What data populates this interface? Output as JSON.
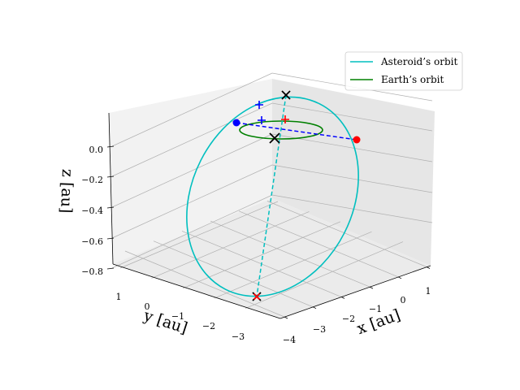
{
  "chart_data": {
    "type": "line",
    "projection": "3d",
    "axes": {
      "x": {
        "label": "x [au]",
        "ticks": [
          "-4",
          "-3",
          "-2",
          "-1",
          "0",
          "1"
        ]
      },
      "y": {
        "label": "y [au]",
        "ticks": [
          "-3",
          "-2",
          "-1",
          "0",
          "1"
        ]
      },
      "z": {
        "label": "z [au]",
        "ticks": [
          "-0.8",
          "-0.6",
          "-0.4",
          "-0.2",
          "0.0"
        ]
      }
    },
    "grid": true,
    "legend": {
      "position": "top-right",
      "entries": [
        {
          "label": "Asteroid’s orbit",
          "color": "#00bfbf"
        },
        {
          "label": "Earth’s orbit",
          "color": "#008000"
        }
      ]
    },
    "series": [
      {
        "name": "Asteroid’s orbit",
        "color": "#00bfbf",
        "shape": "ellipse"
      },
      {
        "name": "Earth’s orbit",
        "color": "#008000",
        "shape": "ellipse"
      }
    ],
    "markers": [
      {
        "symbol": "circle",
        "color": "#0000ff"
      },
      {
        "symbol": "circle",
        "color": "#ff0000"
      },
      {
        "symbol": "x",
        "color": "#000000"
      },
      {
        "symbol": "x",
        "color": "#000000"
      },
      {
        "symbol": "x",
        "color": "#000000"
      },
      {
        "symbol": "plus",
        "color": "#0000ff"
      },
      {
        "symbol": "plus",
        "color": "#0000ff"
      },
      {
        "symbol": "plus",
        "color": "#ff0000"
      },
      {
        "symbol": "x",
        "color": "#ff0000"
      }
    ]
  }
}
